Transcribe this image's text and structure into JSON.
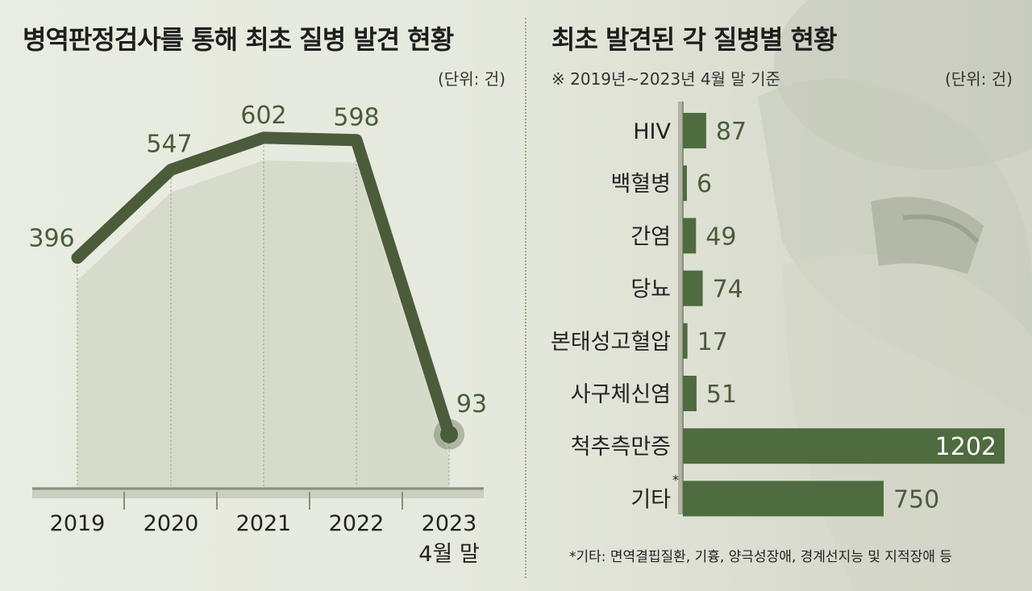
{
  "colors": {
    "line": "#4a5c3a",
    "bar": "#4f6b40",
    "label": "#4a5c3a",
    "area": "#c9cebb"
  },
  "left": {
    "title": "병역판정검사를 통해 최초 질병 발견 현황",
    "unit": "(단위: 건)"
  },
  "right": {
    "title": "최초 발견된 각 질병별 현황",
    "note": "※ 2019년~2023년 4월 말 기준",
    "unit": "(단위: 건)",
    "footnote": "*기타: 면역결핍질환, 기흉, 양극성장애, 경계선지능 및 지적장애 등"
  },
  "chart_data": [
    {
      "type": "line",
      "categories": [
        "2019",
        "2020",
        "2021",
        "2022",
        "2023"
      ],
      "category_sublabels": [
        "",
        "",
        "",
        "",
        "4월 말"
      ],
      "values": [
        396,
        547,
        602,
        598,
        93
      ],
      "data_labels": [
        "396",
        "547",
        "602",
        "598",
        "93"
      ],
      "ylim": [
        0,
        700
      ]
    },
    {
      "type": "bar",
      "orientation": "horizontal",
      "categories": [
        "HIV",
        "백혈병",
        "간염",
        "당뇨",
        "본태성고혈압",
        "사구체신염",
        "척추측만증",
        "기타"
      ],
      "category_marks": [
        "",
        "",
        "",
        "",
        "",
        "",
        "",
        "*"
      ],
      "values": [
        87,
        6,
        49,
        74,
        17,
        51,
        1202,
        750
      ],
      "data_labels": [
        "87",
        "6",
        "49",
        "74",
        "17",
        "51",
        "1202",
        "750"
      ],
      "xlim": [
        0,
        1202
      ]
    }
  ]
}
